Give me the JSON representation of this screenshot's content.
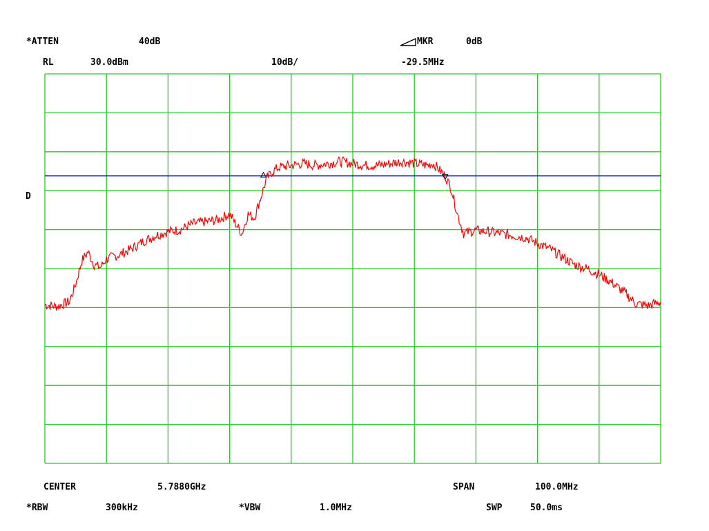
{
  "header": {
    "atten_label": "*ATTEN",
    "atten_value": "40dB",
    "mkr_label": "MKR",
    "mkr_value": "0dB",
    "rl_label": "RL",
    "rl_value": "30.0dBm",
    "scale": "10dB/",
    "mkr_freq": "-29.5MHz",
    "side_marker": "D"
  },
  "footer": {
    "center_label": "CENTER",
    "center_value": "5.7880GHz",
    "span_label": "SPAN",
    "span_value": "100.0MHz",
    "rbw_label": "*RBW",
    "rbw_value": "300kHz",
    "vbw_label": "*VBW",
    "vbw_value": "1.0MHz",
    "swp_label": "SWP",
    "swp_value": "50.0ms"
  },
  "colors": {
    "grid": "#22cc22",
    "trace": "#ff0000",
    "display_line": "#0000cc",
    "text": "#000000"
  },
  "chart_data": {
    "type": "line",
    "x_unit": "MHz",
    "x_range": [
      5738.0,
      5838.0
    ],
    "y_unit": "dBm",
    "y_range": [
      -70.0,
      30.0
    ],
    "grid": true,
    "grid_divisions": {
      "x": 10,
      "y": 10
    },
    "display_line_dbm": 3.8,
    "markers": [
      {
        "freq_mhz": 5773.5,
        "dbm": 3.8,
        "shape": "triangle-up"
      },
      {
        "freq_mhz": 5803.0,
        "dbm": 3.8,
        "shape": "triangle-down"
      }
    ],
    "series": [
      {
        "freq_mhz": [
          5738,
          5740,
          5742,
          5743,
          5744,
          5745,
          5746,
          5747,
          5748,
          5750,
          5752,
          5754,
          5756,
          5758,
          5760,
          5762,
          5764,
          5766,
          5768,
          5769,
          5770,
          5771,
          5772,
          5773,
          5774,
          5775,
          5776,
          5778,
          5780,
          5782,
          5784,
          5786,
          5788,
          5790,
          5792,
          5794,
          5796,
          5798,
          5800,
          5801,
          5802,
          5803,
          5804,
          5805,
          5806,
          5807,
          5808,
          5810,
          5812,
          5814,
          5816,
          5818,
          5820,
          5822,
          5824,
          5826,
          5828,
          5830,
          5832,
          5834,
          5836,
          5838
        ],
        "dbm": [
          -29.3,
          -29.7,
          -28.5,
          -24.0,
          -18.0,
          -15.7,
          -19.0,
          -19.7,
          -17.5,
          -16.5,
          -15.0,
          -13.0,
          -11.5,
          -10.5,
          -10.0,
          -8.5,
          -8.0,
          -7.5,
          -6.0,
          -8.5,
          -11.0,
          -6.0,
          -7.0,
          -2.0,
          3.0,
          5.0,
          6.0,
          6.5,
          7.0,
          6.5,
          7.0,
          7.5,
          7.0,
          6.5,
          6.5,
          7.0,
          7.5,
          7.0,
          6.5,
          7.0,
          5.5,
          3.8,
          0.5,
          -6.0,
          -11.0,
          -10.5,
          -10.2,
          -10.5,
          -11.0,
          -11.5,
          -12.0,
          -13.5,
          -15.0,
          -17.0,
          -19.0,
          -20.0,
          -21.5,
          -23.5,
          -26.0,
          -29.0,
          -29.5,
          -28.5
        ]
      }
    ]
  }
}
